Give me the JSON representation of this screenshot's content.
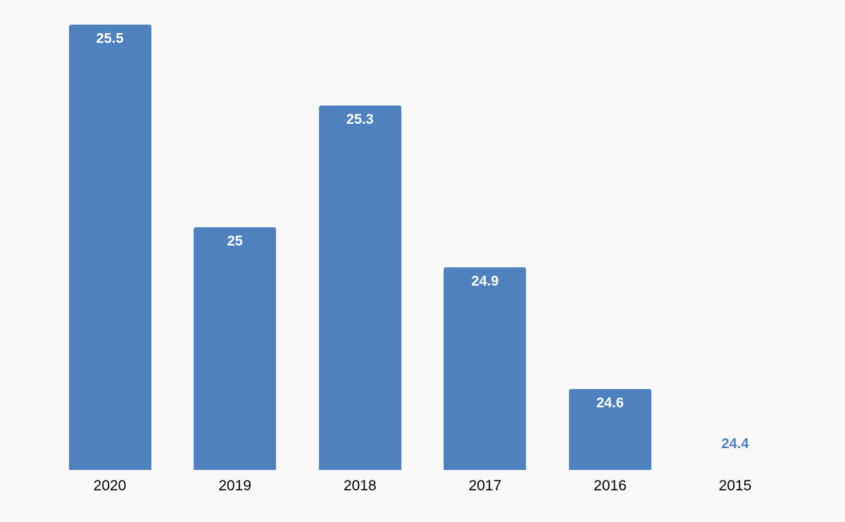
{
  "chart_data": {
    "type": "bar",
    "categories": [
      "2020",
      "2019",
      "2018",
      "2017",
      "2016",
      "2015"
    ],
    "values": [
      25.5,
      25.0,
      25.3,
      24.9,
      24.6,
      24.4
    ],
    "value_labels": [
      "25.5",
      "25",
      "25.3",
      "24.9",
      "24.6",
      "24.4"
    ],
    "title": "",
    "xlabel": "",
    "ylabel": "",
    "ylim": [
      24.4,
      25.6
    ],
    "grid": false,
    "legend": "none",
    "colors": {
      "bar": "#4e81bd",
      "value_label_inside": "#ffffff",
      "value_label_outside": "#4f81bd",
      "axis_label": "#000000",
      "background": "#f9f9f9"
    }
  }
}
